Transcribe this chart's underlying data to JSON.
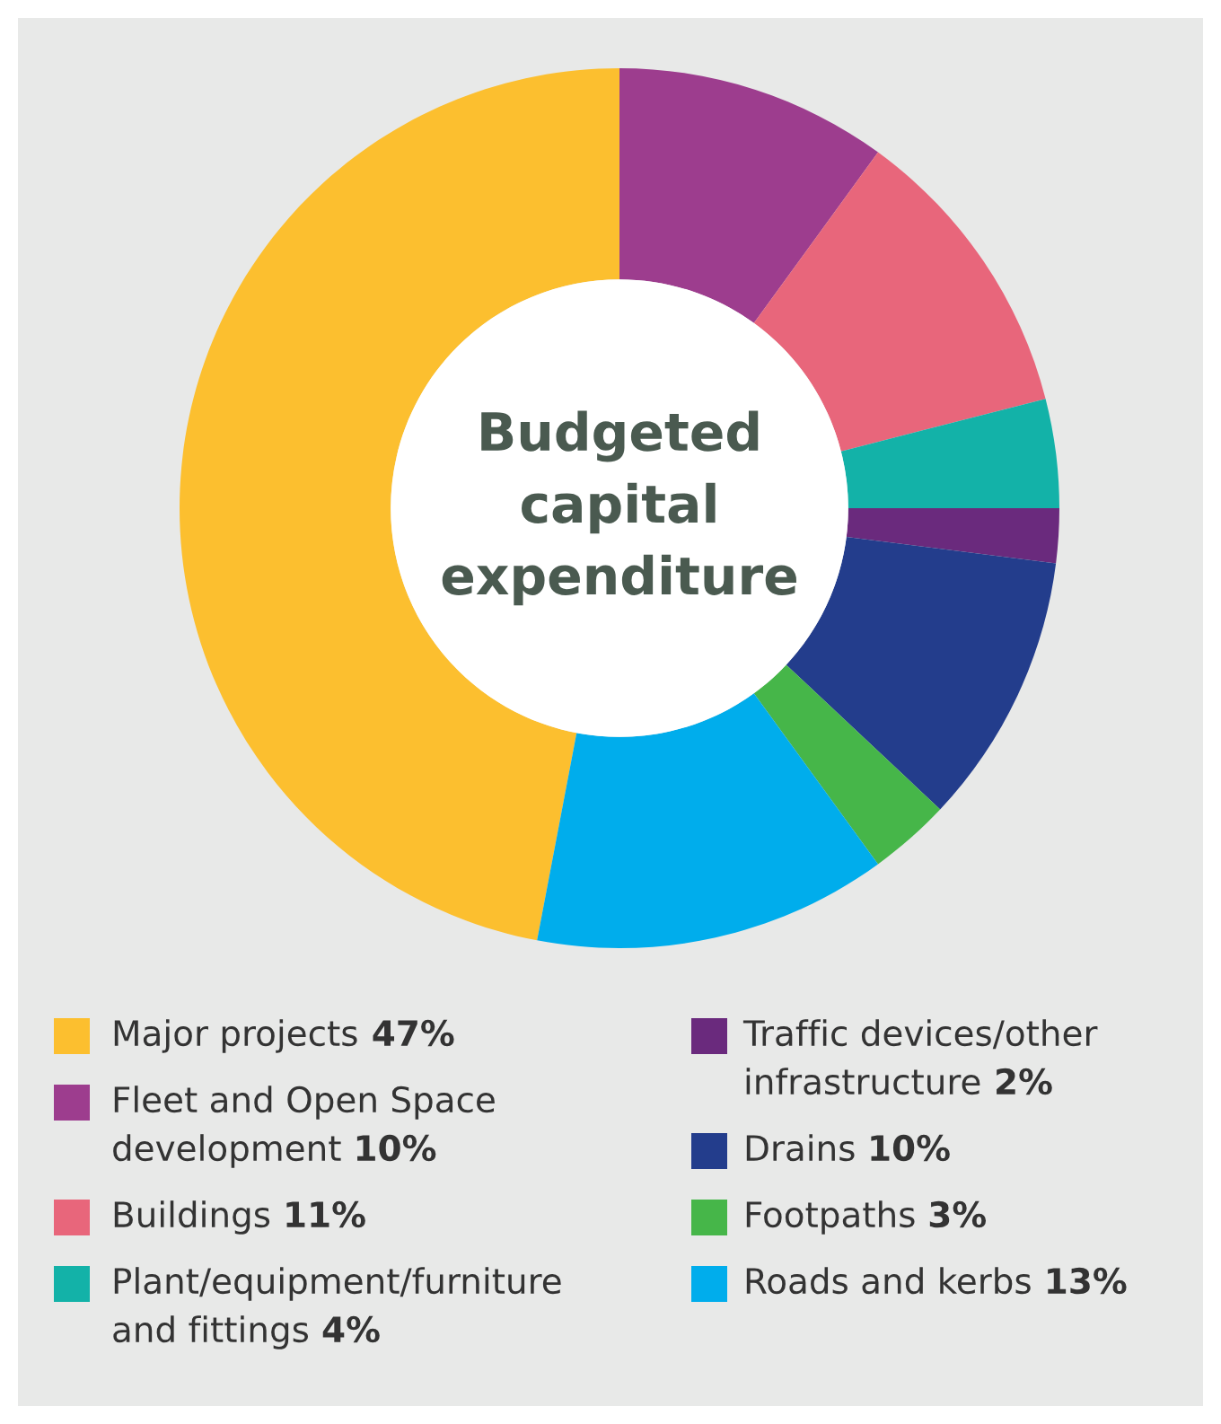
{
  "chart_data": {
    "type": "donut",
    "title": "Budgeted capital expenditure",
    "categories": [
      "Major projects",
      "Fleet and Open Space development",
      "Buildings",
      "Plant/equipment/furniture and fittings",
      "Traffic devices/other infrastructure",
      "Drains",
      "Footpaths",
      "Roads and kerbs"
    ],
    "values": [
      47,
      10,
      11,
      4,
      2,
      10,
      3,
      13
    ],
    "colors": [
      "#fcbf2f",
      "#9d3d8e",
      "#e8667b",
      "#13b2a8",
      "#6a2a7d",
      "#233d8c",
      "#46b649",
      "#00adec"
    ],
    "value_labels": [
      "47%",
      "10%",
      "11%",
      "4%",
      "2%",
      "10%",
      "3%",
      "13%"
    ],
    "legend": "bottom"
  }
}
